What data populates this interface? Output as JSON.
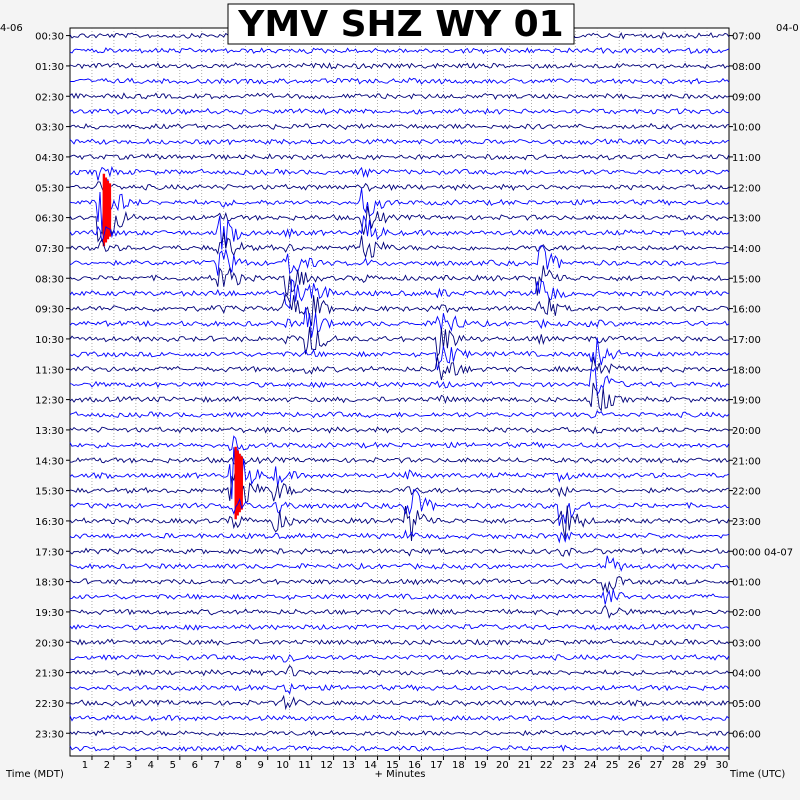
{
  "chart_data": {
    "type": "line",
    "title": "YMV SHZ WY 01",
    "left_axis_label": "Time (MDT)",
    "right_axis_label": "Time (UTC)",
    "xlabel": "+ Minutes",
    "top_left_date": "4-06",
    "top_right_date": "04-0",
    "x_ticks": [
      1,
      2,
      3,
      4,
      5,
      6,
      7,
      8,
      9,
      10,
      11,
      12,
      13,
      14,
      15,
      16,
      17,
      18,
      19,
      20,
      21,
      22,
      23,
      24,
      25,
      26,
      27,
      28,
      29,
      30
    ],
    "xlim": [
      0,
      30
    ],
    "left_ticks": [
      "00:30",
      "01:30",
      "02:30",
      "03:30",
      "04:30",
      "05:30",
      "06:30",
      "07:30",
      "08:30",
      "09:30",
      "10:30",
      "11:30",
      "12:30",
      "13:30",
      "14:30",
      "15:30",
      "16:30",
      "17:30",
      "18:30",
      "19:30",
      "20:30",
      "21:30",
      "22:30",
      "23:30"
    ],
    "right_ticks": [
      "07:00",
      "08:00",
      "09:00",
      "10:00",
      "11:00",
      "12:00",
      "13:00",
      "14:00",
      "15:00",
      "16:00",
      "17:00",
      "18:00",
      "19:00",
      "20:00",
      "21:00",
      "22:00",
      "23:00",
      "00:00 04-07",
      "01:00",
      "02:00",
      "03:00",
      "04:00",
      "05:00",
      "06:00"
    ],
    "trace_count": 48,
    "trace_colors": [
      "#00007a",
      "#0000ff"
    ],
    "clip_color": "#ff0000",
    "grid": true,
    "events": [
      {
        "minute": 1.5,
        "hour": 6.0,
        "strength": "high"
      },
      {
        "minute": 7.0,
        "hour": 7.5,
        "strength": "high"
      },
      {
        "minute": 10.0,
        "hour": 8.5,
        "strength": "high"
      },
      {
        "minute": 11.0,
        "hour": 9.5,
        "strength": "high"
      },
      {
        "minute": 13.5,
        "hour": 6.5,
        "strength": "high"
      },
      {
        "minute": 17.0,
        "hour": 10.5,
        "strength": "high"
      },
      {
        "minute": 21.5,
        "hour": 8.5,
        "strength": "high"
      },
      {
        "minute": 24.0,
        "hour": 11.5,
        "strength": "high"
      },
      {
        "minute": 7.5,
        "hour": 15.0,
        "strength": "high"
      },
      {
        "minute": 9.5,
        "hour": 15.5,
        "strength": "medium"
      },
      {
        "minute": 15.5,
        "hour": 16.0,
        "strength": "medium"
      },
      {
        "minute": 22.5,
        "hour": 16.0,
        "strength": "medium"
      },
      {
        "minute": 24.5,
        "hour": 18.5,
        "strength": "medium"
      },
      {
        "minute": 10.0,
        "hour": 21.5,
        "strength": "low"
      }
    ]
  }
}
